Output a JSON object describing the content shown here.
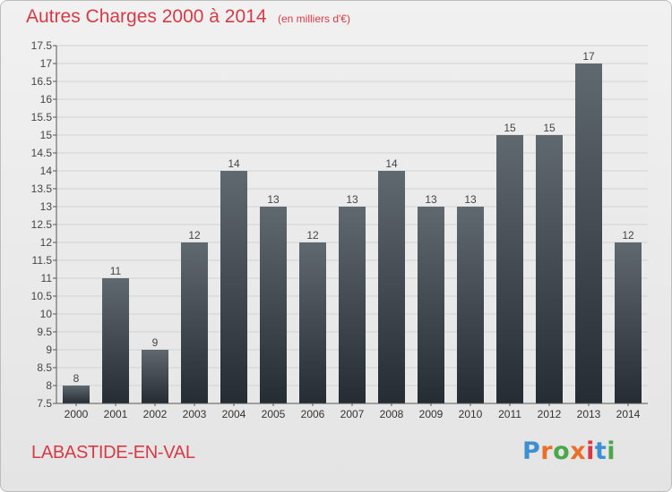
{
  "header": {
    "title": "Autres Charges 2000 à 2014",
    "subtitle": "(en milliers d'€)"
  },
  "footer": {
    "commune": "LABASTIDE-EN-VAL",
    "logo": "Proxiti"
  },
  "colors": {
    "title": "#d63a45",
    "bar_top": "#606870",
    "bar_bottom": "#262c33",
    "logo_letters": [
      "#3d8fd1",
      "#e8702a",
      "#4aa84a",
      "#e8702a",
      "#d63a45",
      "#3d8fd1",
      "#4aa84a"
    ]
  },
  "chart_data": {
    "type": "bar",
    "title": "Autres Charges 2000 à 2014",
    "subtitle": "(en milliers d'€)",
    "xlabel": "",
    "ylabel": "",
    "categories": [
      "2000",
      "2001",
      "2002",
      "2003",
      "2004",
      "2005",
      "2006",
      "2007",
      "2008",
      "2009",
      "2010",
      "2011",
      "2012",
      "2013",
      "2014"
    ],
    "values": [
      8,
      11,
      9,
      12,
      14,
      13,
      12,
      13,
      14,
      13,
      13,
      15,
      15,
      17,
      12
    ],
    "data_labels": [
      "8",
      "11",
      "9",
      "12",
      "14",
      "13",
      "12",
      "13",
      "14",
      "13",
      "13",
      "15",
      "15",
      "17",
      "12"
    ],
    "ylim": [
      7.5,
      17.5
    ],
    "yticks": [
      7.5,
      8,
      8.5,
      9,
      9.5,
      10,
      10.5,
      11,
      11.5,
      12,
      12.5,
      13,
      13.5,
      14,
      14.5,
      15,
      15.5,
      16,
      16.5,
      17,
      17.5
    ],
    "ytick_labels": [
      "7.5",
      "8",
      "8.5",
      "9",
      "9.5",
      "10",
      "10.5",
      "11",
      "11.5",
      "12",
      "12.5",
      "13",
      "13.5",
      "14",
      "14.5",
      "15",
      "15.5",
      "16",
      "16.5",
      "17",
      "17.5"
    ],
    "grid": true
  }
}
